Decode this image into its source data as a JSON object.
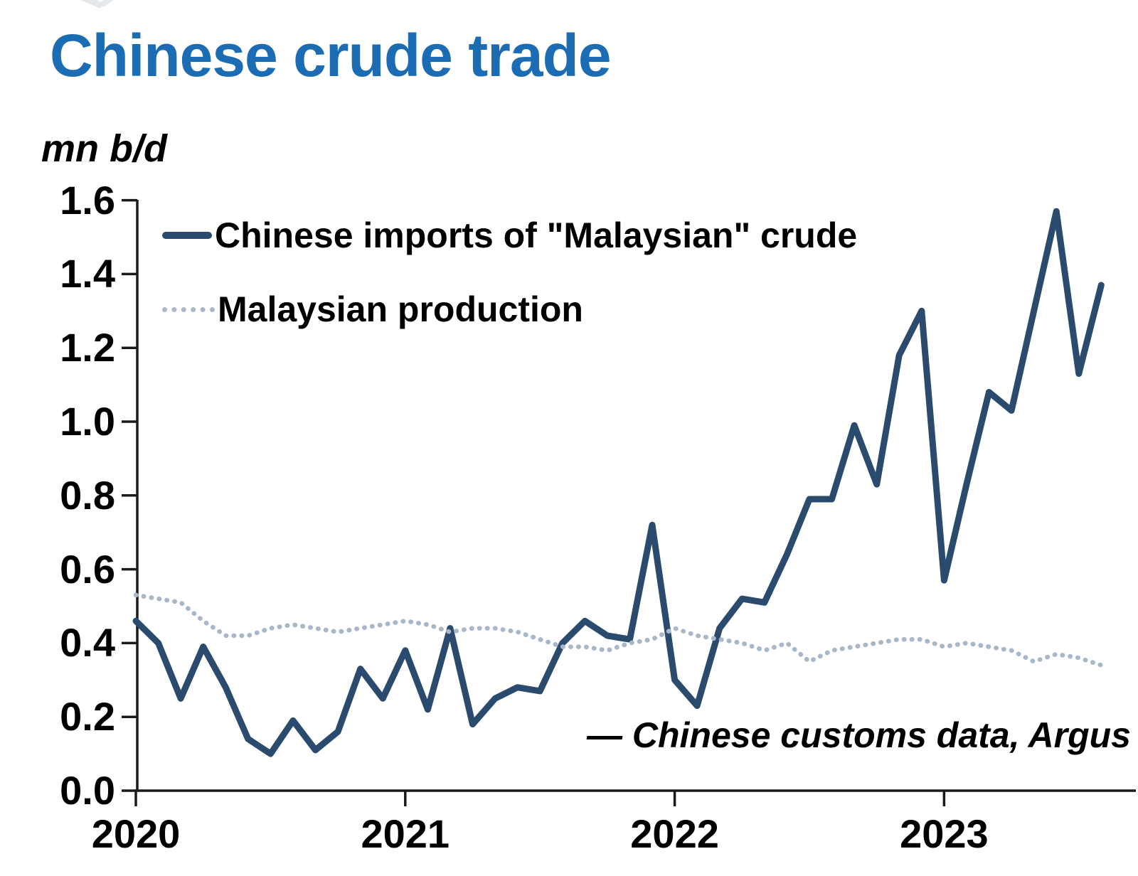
{
  "header": {
    "title": "Chinese crude trade",
    "title_color": "#1c6cb4",
    "unit_label": "mn b/d"
  },
  "legend": [
    {
      "label": "Chinese imports of \"Malaysian\" crude",
      "style": "solid",
      "color": "#2a4b6e"
    },
    {
      "label": "Malaysian production",
      "style": "dotted",
      "color": "#a8b7c9"
    }
  ],
  "annotation": {
    "source_note": "— Chinese customs data, Argus"
  },
  "chart_data": {
    "type": "line",
    "title": "Chinese crude trade",
    "ylabel": "mn b/d",
    "xlabel": "",
    "ylim": [
      0.0,
      1.6
    ],
    "grid": false,
    "legend_position": "top-left",
    "y_ticks": [
      "0.0",
      "0.2",
      "0.4",
      "0.6",
      "0.8",
      "1.0",
      "1.2",
      "1.4",
      "1.6"
    ],
    "x_ticks": [
      "2020",
      "2021",
      "2022",
      "2023"
    ],
    "x": [
      "2020-01",
      "2020-02",
      "2020-03",
      "2020-04",
      "2020-05",
      "2020-06",
      "2020-07",
      "2020-08",
      "2020-09",
      "2020-10",
      "2020-11",
      "2020-12",
      "2021-01",
      "2021-02",
      "2021-03",
      "2021-04",
      "2021-05",
      "2021-06",
      "2021-07",
      "2021-08",
      "2021-09",
      "2021-10",
      "2021-11",
      "2021-12",
      "2022-01",
      "2022-02",
      "2022-03",
      "2022-04",
      "2022-05",
      "2022-06",
      "2022-07",
      "2022-08",
      "2022-09",
      "2022-10",
      "2022-11",
      "2022-12",
      "2023-01",
      "2023-02",
      "2023-03",
      "2023-04",
      "2023-05",
      "2023-06",
      "2023-07",
      "2023-08"
    ],
    "series": [
      {
        "name": "Chinese imports of \"Malaysian\" crude",
        "style": "solid",
        "color": "#2a4b6e",
        "values": [
          0.46,
          0.4,
          0.25,
          0.39,
          0.28,
          0.14,
          0.1,
          0.19,
          0.11,
          0.16,
          0.33,
          0.25,
          0.38,
          0.22,
          0.44,
          0.18,
          0.25,
          0.28,
          0.27,
          0.4,
          0.46,
          0.42,
          0.41,
          0.72,
          0.3,
          0.23,
          0.44,
          0.52,
          0.51,
          0.64,
          0.79,
          0.79,
          0.99,
          0.83,
          1.18,
          1.3,
          0.57,
          0.83,
          1.08,
          1.03,
          1.3,
          1.57,
          1.13,
          1.37
        ]
      },
      {
        "name": "Malaysian production",
        "style": "dotted",
        "color": "#a8b7c9",
        "values": [
          0.53,
          0.52,
          0.51,
          0.46,
          0.42,
          0.42,
          0.44,
          0.45,
          0.44,
          0.43,
          0.44,
          0.45,
          0.46,
          0.45,
          0.43,
          0.44,
          0.44,
          0.43,
          0.41,
          0.39,
          0.39,
          0.38,
          0.4,
          0.41,
          0.44,
          0.42,
          0.41,
          0.4,
          0.38,
          0.4,
          0.35,
          0.38,
          0.39,
          0.4,
          0.41,
          0.41,
          0.39,
          0.4,
          0.39,
          0.38,
          0.35,
          0.37,
          0.36,
          0.34
        ]
      }
    ]
  }
}
